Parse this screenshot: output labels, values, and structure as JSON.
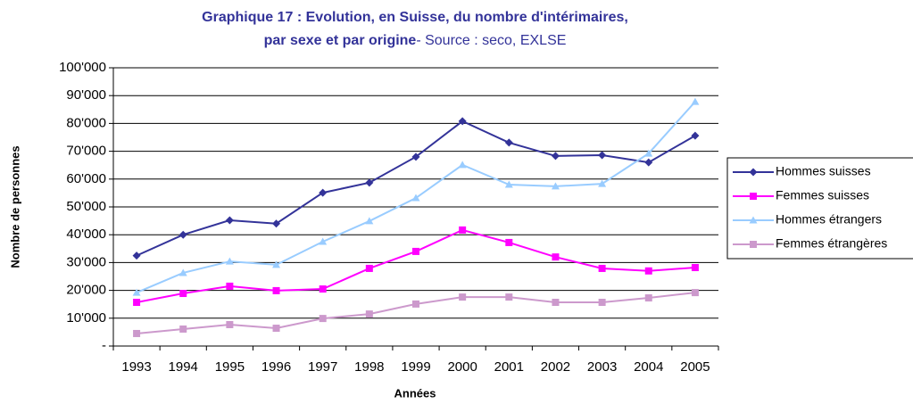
{
  "chart_data": {
    "type": "line",
    "title": [
      "Graphique 17 : Evolution, en Suisse, du nombre d'intérimaires,",
      "par sexe et par origine"
    ],
    "source": "- Source : seco, EXLSE",
    "x_label": "Années",
    "y_label": "Nombre de personnes",
    "categories": [
      "1993",
      "1994",
      "1995",
      "1996",
      "1997",
      "1998",
      "1999",
      "2000",
      "2001",
      "2002",
      "2003",
      "2004",
      "2005"
    ],
    "series": [
      {
        "name": "Hommes suisses",
        "color": "#333399",
        "marker": "diamond",
        "values": [
          32500,
          40000,
          45200,
          44000,
          55100,
          58700,
          68000,
          80800,
          73100,
          68300,
          68600,
          66000,
          75600
        ]
      },
      {
        "name": "Femmes suisses",
        "color": "#ff00ff",
        "marker": "square",
        "values": [
          15700,
          18900,
          21500,
          19900,
          20500,
          27900,
          34000,
          41700,
          37200,
          32000,
          27900,
          27000,
          28200
        ]
      },
      {
        "name": "Hommes étrangers",
        "color": "#99ccff",
        "marker": "triangle",
        "values": [
          19200,
          26300,
          30400,
          29200,
          37500,
          44900,
          53200,
          65100,
          58000,
          57400,
          58300,
          69200,
          87800
        ]
      },
      {
        "name": "Femmes étrangères",
        "color": "#cc99cc",
        "marker": "square",
        "values": [
          4500,
          6100,
          7700,
          6400,
          9900,
          11500,
          15100,
          17600,
          17600,
          15700,
          15700,
          17300,
          19200
        ]
      }
    ],
    "ylim": [
      0,
      100000
    ],
    "yticks": [
      {
        "value": 0,
        "label": "-"
      },
      {
        "value": 10000,
        "label": "10'000"
      },
      {
        "value": 20000,
        "label": "20'000"
      },
      {
        "value": 30000,
        "label": "30'000"
      },
      {
        "value": 40000,
        "label": "40'000"
      },
      {
        "value": 50000,
        "label": "50'000"
      },
      {
        "value": 60000,
        "label": "60'000"
      },
      {
        "value": 70000,
        "label": "70'000"
      },
      {
        "value": 80000,
        "label": "80'000"
      },
      {
        "value": 90000,
        "label": "90'000"
      },
      {
        "value": 100000,
        "label": "100'000"
      }
    ],
    "grid": true,
    "legend": "right"
  }
}
